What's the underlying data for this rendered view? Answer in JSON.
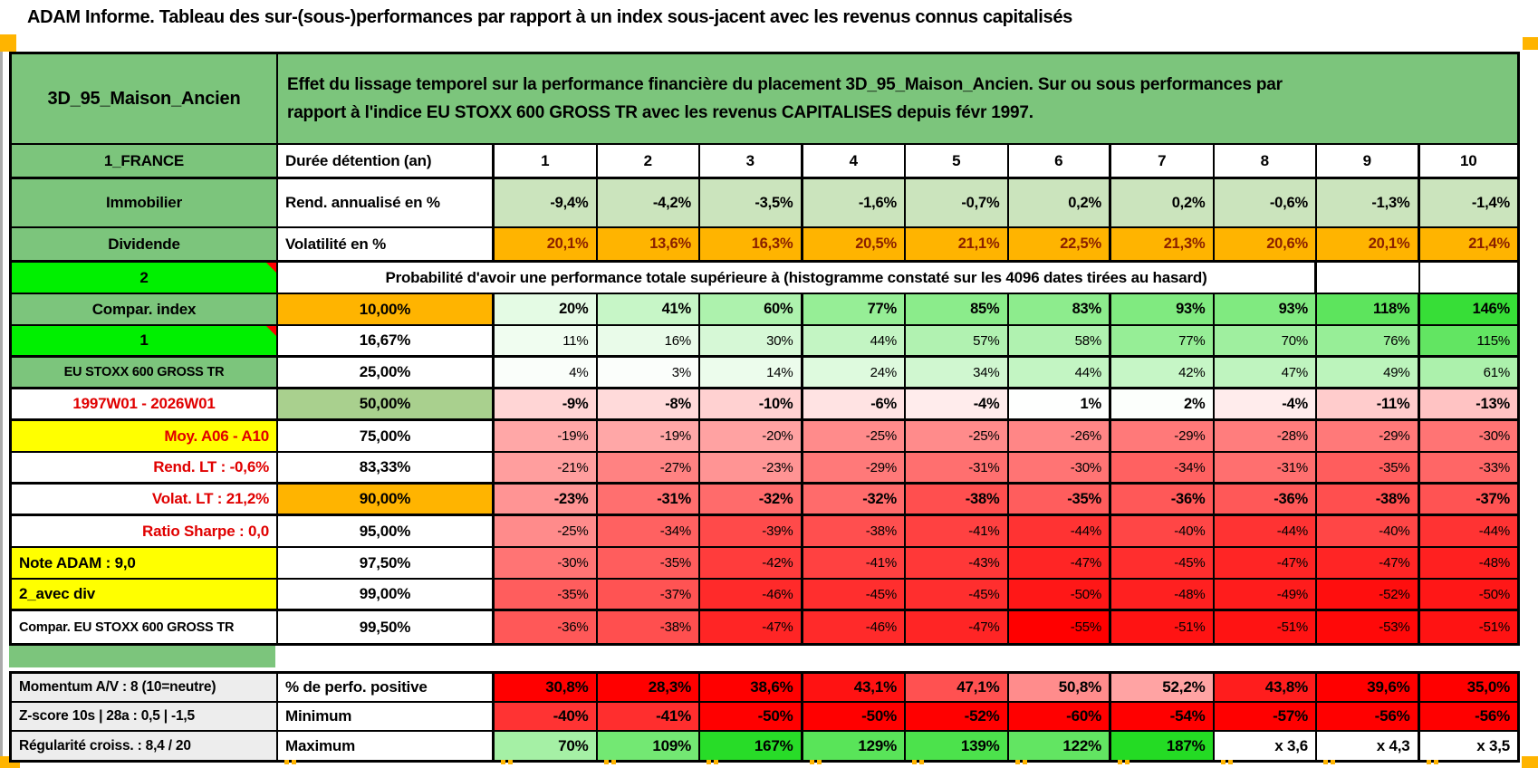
{
  "title": "ADAM Informe. Tableau des sur-(sous-)performances par rapport à un index sous-jacent avec les revenus connus capitalisés",
  "header": {
    "asset_name": "3D_95_Maison_Ancien",
    "description_lines": [
      "Effet du lissage temporel sur la performance financière du placement 3D_95_Maison_Ancien. Sur ou sous performances par",
      "rapport à l'indice EU STOXX 600 GROSS TR avec les revenus CAPITALISES depuis févr 1997."
    ]
  },
  "colors": {
    "green_header": "#7cc57c",
    "bright_green": "#00f000",
    "orange": "#ffb400",
    "yellow": "#ffff00",
    "sage": "#a9d08e",
    "light_green_cells": "#cbe4bd",
    "gray_label": "#ededed",
    "red_text": "#e00000",
    "vol_text": "#8a2000",
    "full_red": "#ff0000",
    "full_green": "#24db24",
    "note_marker": "#ff0000",
    "corner_marker": "#ffb400"
  },
  "table": {
    "duration": {
      "a": "1_FRANCE",
      "b": "Durée détention (an)",
      "values": [
        "1",
        "2",
        "3",
        "4",
        "5",
        "6",
        "7",
        "8",
        "9",
        "10"
      ]
    },
    "metrics": [
      {
        "a": "Immobilier",
        "b": "Rend. annualisé en %",
        "bg": "light",
        "values": [
          "-9,4%",
          "-4,2%",
          "-3,5%",
          "-1,6%",
          "-0,7%",
          "0,2%",
          "0,2%",
          "-0,6%",
          "-1,3%",
          "-1,4%"
        ]
      },
      {
        "a": "Dividende",
        "b": "Volatilité en %",
        "bg": "orange",
        "values": [
          "20,1%",
          "13,6%",
          "16,3%",
          "20,5%",
          "21,1%",
          "22,5%",
          "21,3%",
          "20,6%",
          "20,1%",
          "21,4%"
        ]
      }
    ],
    "probability": {
      "header_label": "2",
      "header_text": "Probabilité d'avoir une performance totale supérieure à (histogramme constaté sur les 4096 dates tirées au hasard)",
      "rows": [
        {
          "a": "Compar. index",
          "a_bg": "green",
          "b": "10,00%",
          "b_bg": "orange",
          "bold": true,
          "values": [
            "20%",
            "41%",
            "60%",
            "77%",
            "85%",
            "83%",
            "93%",
            "93%",
            "118%",
            "146%"
          ]
        },
        {
          "a": "1",
          "a_bg": "bright",
          "a_note": true,
          "b": "16,67%",
          "thick": true,
          "values": [
            "11%",
            "16%",
            "30%",
            "44%",
            "57%",
            "58%",
            "77%",
            "70%",
            "76%",
            "115%"
          ]
        },
        {
          "a": "EU STOXX 600 GROSS TR",
          "a_bg": "green",
          "a_small": true,
          "b": "25,00%",
          "thick": true,
          "values": [
            "4%",
            "3%",
            "14%",
            "24%",
            "34%",
            "44%",
            "42%",
            "47%",
            "49%",
            "61%"
          ]
        },
        {
          "a": "1997W01 - 2026W01",
          "a_fg": "red",
          "b": "50,00%",
          "b_bg": "sage",
          "bold": true,
          "thick": true,
          "values": [
            "-9%",
            "-8%",
            "-10%",
            "-6%",
            "-4%",
            "1%",
            "2%",
            "-4%",
            "-11%",
            "-13%"
          ]
        },
        {
          "a": "Moy. A06 - A10",
          "a_bg": "yellow",
          "a_fg": "red",
          "a_align": "right",
          "b": "75,00%",
          "values": [
            "-19%",
            "-19%",
            "-20%",
            "-25%",
            "-25%",
            "-26%",
            "-29%",
            "-28%",
            "-29%",
            "-30%"
          ]
        },
        {
          "a": "Rend. LT :   -0,6%",
          "a_fg": "red",
          "a_align": "right",
          "b": "83,33%",
          "thick": true,
          "values": [
            "-21%",
            "-27%",
            "-23%",
            "-29%",
            "-31%",
            "-30%",
            "-34%",
            "-31%",
            "-35%",
            "-33%"
          ]
        },
        {
          "a": "Volat. LT :   21,2%",
          "a_fg": "red",
          "a_align": "right",
          "b": "90,00%",
          "b_bg": "orange",
          "bold": true,
          "thick": true,
          "values": [
            "-23%",
            "-31%",
            "-32%",
            "-32%",
            "-38%",
            "-35%",
            "-36%",
            "-36%",
            "-38%",
            "-37%"
          ]
        },
        {
          "a": "Ratio Sharpe :   0,0",
          "a_fg": "red",
          "a_align": "right",
          "b": "95,00%",
          "values": [
            "-25%",
            "-34%",
            "-39%",
            "-38%",
            "-41%",
            "-44%",
            "-40%",
            "-44%",
            "-40%",
            "-44%"
          ]
        },
        {
          "a": "Note ADAM : 9,0",
          "a_bg": "yellow",
          "a_align": "left",
          "b": "97,50%",
          "values": [
            "-30%",
            "-35%",
            "-42%",
            "-41%",
            "-43%",
            "-47%",
            "-45%",
            "-47%",
            "-47%",
            "-48%"
          ]
        },
        {
          "a": "2_avec div",
          "a_bg": "yellow",
          "a_align": "left",
          "b": "99,00%",
          "thick": true,
          "values": [
            "-35%",
            "-37%",
            "-46%",
            "-45%",
            "-45%",
            "-50%",
            "-48%",
            "-49%",
            "-52%",
            "-50%"
          ]
        },
        {
          "a": "Compar. EU STOXX 600 GROSS TR",
          "a_align": "left",
          "a_small": true,
          "b": "99,50%",
          "values": [
            "-36%",
            "-38%",
            "-47%",
            "-46%",
            "-47%",
            "-55%",
            "-51%",
            "-51%",
            "-53%",
            "-51%"
          ]
        }
      ]
    }
  },
  "summary": {
    "rows": [
      {
        "a": "Momentum A/V : 8 (10=neutre)",
        "b": "% de perfo. positive",
        "scale": "perf",
        "values": [
          "30,8%",
          "28,3%",
          "38,6%",
          "43,1%",
          "47,1%",
          "50,8%",
          "52,2%",
          "43,8%",
          "39,6%",
          "35,0%"
        ]
      },
      {
        "a": "Z-score 10s | 28a : 0,5 | -1,5",
        "b": "Minimum",
        "scale": "min",
        "values": [
          "-40%",
          "-41%",
          "-50%",
          "-50%",
          "-52%",
          "-60%",
          "-54%",
          "-57%",
          "-56%",
          "-56%"
        ]
      },
      {
        "a": "Régularité croiss. : 8,4 / 20",
        "b": "Maximum",
        "scale": "max",
        "values": [
          "70%",
          "109%",
          "167%",
          "129%",
          "139%",
          "122%",
          "187%",
          "x 3,6",
          "x 4,3",
          "x 3,5"
        ]
      }
    ]
  }
}
